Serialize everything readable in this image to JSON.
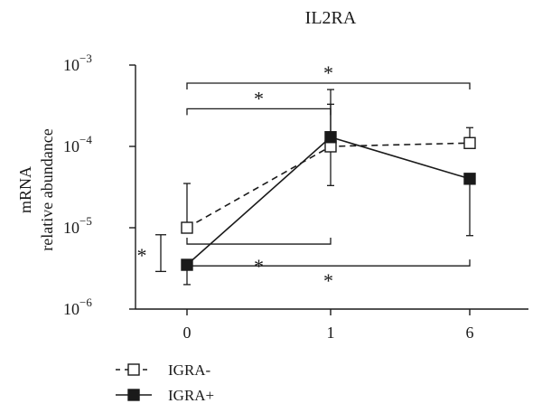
{
  "chart_data": {
    "type": "line",
    "title": "IL2RA",
    "ylabel_line1": "mRNA",
    "ylabel_line2": "relative abundance",
    "xlabel": "",
    "y_scale": "log",
    "ylim": [
      1e-06,
      0.001
    ],
    "y_ticks": [
      {
        "value": 1e-06,
        "base": "10",
        "exp": "−6"
      },
      {
        "value": 1e-05,
        "base": "10",
        "exp": "−5"
      },
      {
        "value": 0.0001,
        "base": "10",
        "exp": "−4"
      },
      {
        "value": 0.001,
        "base": "10",
        "exp": "−3"
      }
    ],
    "categories": [
      "0",
      "1",
      "6"
    ],
    "series": [
      {
        "name": "IGRA-",
        "style": "dashed",
        "marker": "open-square",
        "color": "#1a1a1a",
        "values": [
          1e-05,
          0.0001,
          0.00011
        ],
        "err_low": [
          null,
          3.3e-05,
          null
        ],
        "err_high": [
          3.5e-05,
          0.00033,
          0.00017
        ]
      },
      {
        "name": "IGRA+",
        "style": "solid",
        "marker": "filled-square",
        "color": "#1a1a1a",
        "values": [
          3.5e-06,
          0.00013,
          4e-05
        ],
        "err_low": [
          2e-06,
          null,
          8e-06
        ],
        "err_high": [
          null,
          0.0005,
          null
        ]
      }
    ],
    "significance": [
      {
        "label": "*",
        "kind": "bracket-down",
        "from": "0",
        "to": "6",
        "y": 0.0006
      },
      {
        "label": "*",
        "kind": "bracket-down",
        "from": "0",
        "to": "1",
        "y": 0.00029
      },
      {
        "label": "*",
        "kind": "bracket-up",
        "from": "0",
        "to": "1",
        "y": 6.3e-06
      },
      {
        "label": "*",
        "kind": "bracket-up",
        "from": "0",
        "to": "6",
        "y": 3.4e-06
      },
      {
        "label": "*",
        "kind": "vertical-bar",
        "at": "0",
        "y_low": 2.9e-06,
        "y_high": 8.2e-06
      }
    ],
    "legend": {
      "position": "bottom-left",
      "entries": [
        "IGRA-",
        "IGRA+"
      ]
    }
  }
}
